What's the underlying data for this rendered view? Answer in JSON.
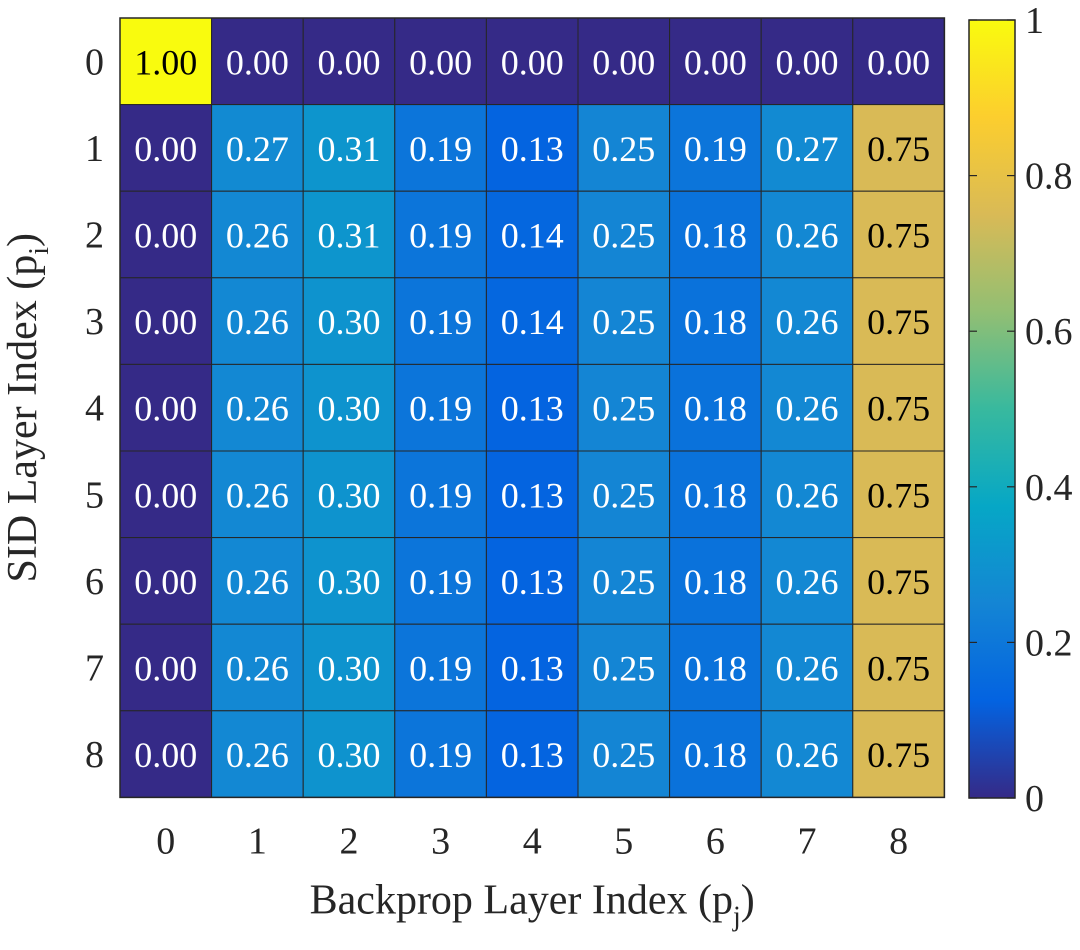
{
  "chart_data": {
    "type": "heatmap",
    "title": "",
    "xlabel": "Backprop Layer Index (p",
    "xlabel_sub": "j",
    "xlabel_close": ")",
    "ylabel": "SID Layer Index (p",
    "ylabel_sub": "i",
    "ylabel_close": ")",
    "x_categories": [
      "0",
      "1",
      "2",
      "3",
      "4",
      "5",
      "6",
      "7",
      "8"
    ],
    "y_categories": [
      "0",
      "1",
      "2",
      "3",
      "4",
      "5",
      "6",
      "7",
      "8"
    ],
    "values": [
      [
        1.0,
        0.0,
        0.0,
        0.0,
        0.0,
        0.0,
        0.0,
        0.0,
        0.0
      ],
      [
        0.0,
        0.27,
        0.31,
        0.19,
        0.13,
        0.25,
        0.19,
        0.27,
        0.75
      ],
      [
        0.0,
        0.26,
        0.31,
        0.19,
        0.14,
        0.25,
        0.18,
        0.26,
        0.75
      ],
      [
        0.0,
        0.26,
        0.3,
        0.19,
        0.14,
        0.25,
        0.18,
        0.26,
        0.75
      ],
      [
        0.0,
        0.26,
        0.3,
        0.19,
        0.13,
        0.25,
        0.18,
        0.26,
        0.75
      ],
      [
        0.0,
        0.26,
        0.3,
        0.19,
        0.13,
        0.25,
        0.18,
        0.26,
        0.75
      ],
      [
        0.0,
        0.26,
        0.3,
        0.19,
        0.13,
        0.25,
        0.18,
        0.26,
        0.75
      ],
      [
        0.0,
        0.26,
        0.3,
        0.19,
        0.13,
        0.25,
        0.18,
        0.26,
        0.75
      ],
      [
        0.0,
        0.26,
        0.3,
        0.19,
        0.13,
        0.25,
        0.18,
        0.26,
        0.75
      ]
    ],
    "colorbar": {
      "range": [
        0,
        1
      ],
      "ticks": [
        0,
        0.2,
        0.4,
        0.6,
        0.8,
        1
      ],
      "tick_labels": [
        "0",
        "0.2",
        "0.4",
        "0.6",
        "0.8",
        "1"
      ],
      "colormap": "parula"
    },
    "grid": true,
    "legend": "colorbar-right"
  }
}
